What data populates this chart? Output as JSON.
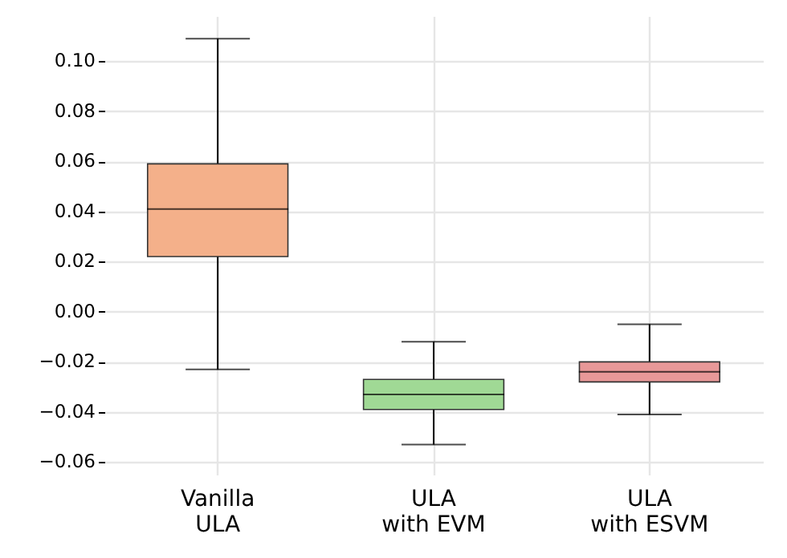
{
  "chart_data": {
    "type": "box",
    "categories": [
      "Vanilla\n ULA",
      "ULA\nwith EVM",
      "ULA\nwith ESVM"
    ],
    "colors": [
      "#f4b08a",
      "#a0d995",
      "#e89898"
    ],
    "boxes": [
      {
        "low": -0.023,
        "q1": 0.022,
        "median": 0.041,
        "q3": 0.059,
        "high": 0.109
      },
      {
        "low": -0.053,
        "q1": -0.039,
        "median": -0.033,
        "q3": -0.027,
        "high": -0.012
      },
      {
        "low": -0.041,
        "q1": -0.028,
        "median": -0.024,
        "q3": -0.02,
        "high": -0.005
      }
    ],
    "ylim": [
      -0.065,
      0.118
    ],
    "yticks": [
      {
        "value": -0.06,
        "label": "−0.06"
      },
      {
        "value": -0.04,
        "label": "−0.04"
      },
      {
        "value": -0.02,
        "label": "−0.02"
      },
      {
        "value": 0,
        "label": "0.00"
      },
      {
        "value": 0.02,
        "label": "0.02"
      },
      {
        "value": 0.04,
        "label": "0.04"
      },
      {
        "value": 0.06,
        "label": "0.06"
      },
      {
        "value": 0.08,
        "label": "0.08"
      },
      {
        "value": 0.1,
        "label": "0.10"
      }
    ],
    "grid": true
  }
}
